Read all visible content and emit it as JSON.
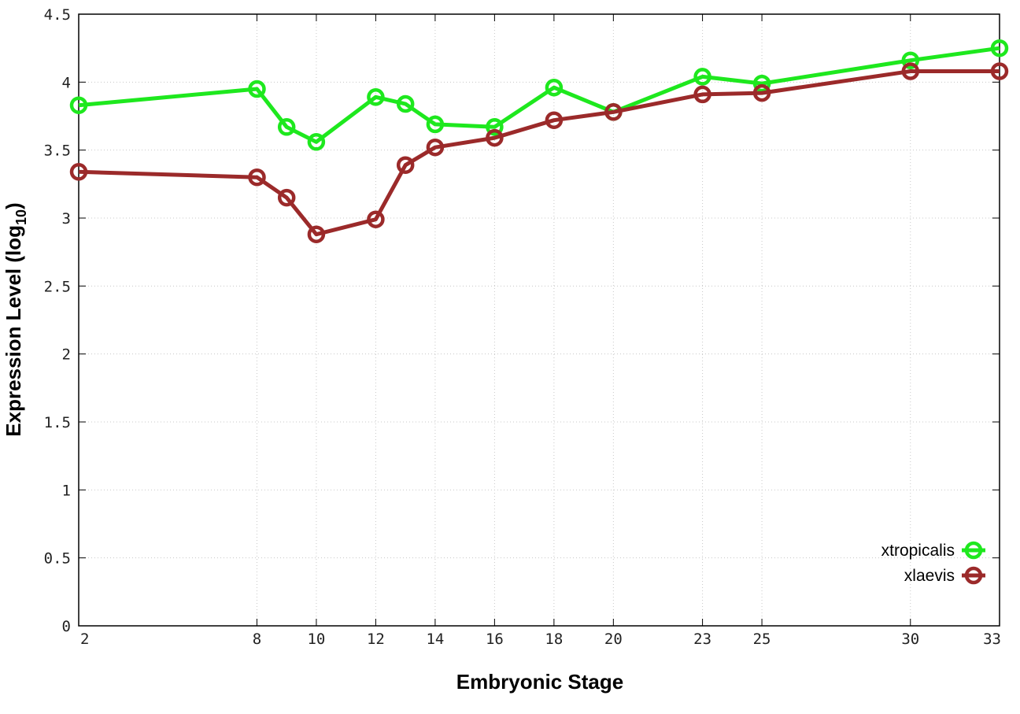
{
  "chart_data": {
    "type": "line",
    "title": "",
    "xlabel": "Embryonic Stage",
    "ylabel_main": "Expression Level (log",
    "ylabel_sub": "10",
    "ylabel_close": ")",
    "xlim": [
      2,
      33
    ],
    "ylim": [
      0,
      4.5
    ],
    "x_ticks": [
      2,
      8,
      10,
      12,
      14,
      16,
      18,
      20,
      23,
      25,
      30,
      33
    ],
    "y_ticks": [
      0,
      0.5,
      1,
      1.5,
      2,
      2.5,
      3,
      3.5,
      4,
      4.5
    ],
    "y_tick_labels": [
      "0",
      "0.5",
      "1",
      "1.5",
      "2",
      "2.5",
      "3",
      "3.5",
      "4",
      "4.5"
    ],
    "grid": true,
    "legend_position": "bottom-right",
    "series": [
      {
        "name": "xtropicalis",
        "color": "#1ee81e",
        "x": [
          2,
          8,
          9,
          10,
          12,
          13,
          14,
          16,
          18,
          20,
          23,
          25,
          30,
          33
        ],
        "y": [
          3.83,
          3.95,
          3.67,
          3.56,
          3.89,
          3.84,
          3.69,
          3.67,
          3.96,
          3.78,
          4.04,
          3.99,
          4.16,
          4.25
        ]
      },
      {
        "name": "xlaevis",
        "color": "#9b2a2a",
        "x": [
          2,
          8,
          9,
          10,
          12,
          13,
          14,
          16,
          18,
          20,
          23,
          25,
          30,
          33
        ],
        "y": [
          3.34,
          3.3,
          3.15,
          2.88,
          2.99,
          3.39,
          3.52,
          3.59,
          3.72,
          3.78,
          3.91,
          3.92,
          4.08,
          4.08
        ]
      }
    ]
  }
}
